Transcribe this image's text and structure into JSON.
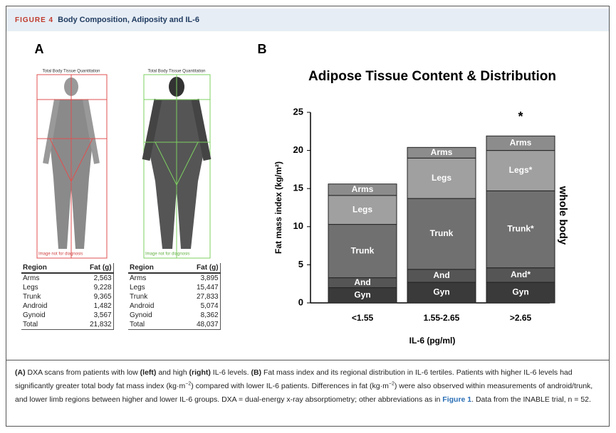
{
  "header": {
    "figure": "FIGURE 4",
    "title": "Body Composition, Adiposity and IL-6"
  },
  "panel_a": {
    "label": "A",
    "scans": [
      {
        "top_label": "Total Body Tissue Quantitation",
        "bottom_label": "Image not for diagnosis"
      },
      {
        "top_label": "Total Body Tissue Quantitation",
        "bottom_label": "Image not for diagnosis"
      }
    ],
    "tables": [
      {
        "header": [
          "Region",
          "Fat (g)"
        ],
        "rows": [
          [
            "Arms",
            "2,563"
          ],
          [
            "Legs",
            "9,228"
          ],
          [
            "Trunk",
            "9,365"
          ],
          [
            "Android",
            "1,482"
          ],
          [
            "Gynoid",
            "3,567"
          ],
          [
            "Total",
            "21,832"
          ]
        ]
      },
      {
        "header": [
          "Region",
          "Fat (g)"
        ],
        "rows": [
          [
            "Arms",
            "3,895"
          ],
          [
            "Legs",
            "15,447"
          ],
          [
            "Trunk",
            "27,833"
          ],
          [
            "Android",
            "5,074"
          ],
          [
            "Gynoid",
            "8,362"
          ],
          [
            "Total",
            "48,037"
          ]
        ]
      }
    ]
  },
  "panel_b": {
    "label": "B"
  },
  "chart_data": {
    "type": "stacked_bar",
    "title": "Adipose Tissue Content & Distribution",
    "y_label": "Fat mass index (kg/m²)",
    "x_label": "IL-6 (pg/ml)",
    "categories": [
      "<1.55",
      "1.55-2.65",
      ">2.65"
    ],
    "series": [
      {
        "color": "#3a3a3a",
        "values": [
          2.0,
          2.7,
          2.7
        ],
        "labels": [
          "Gyn",
          "Gyn",
          "Gyn"
        ]
      },
      {
        "color": "#555555",
        "values": [
          1.3,
          1.7,
          1.9
        ],
        "labels": [
          "And",
          "And",
          "And*"
        ]
      },
      {
        "color": "#707070",
        "values": [
          7.0,
          9.3,
          10.1
        ],
        "labels": [
          "Trunk",
          "Trunk",
          "Trunk*"
        ]
      },
      {
        "color": "#a0a0a0",
        "values": [
          3.8,
          5.3,
          5.3
        ],
        "labels": [
          "Legs",
          "Legs",
          "Legs*"
        ]
      },
      {
        "color": "#8c8c8c",
        "values": [
          1.5,
          1.4,
          1.9
        ],
        "labels": [
          "Arms",
          "Arms",
          "Arms"
        ]
      }
    ],
    "ylim": [
      0,
      25
    ],
    "yticks": [
      0,
      5,
      10,
      15,
      20,
      25
    ],
    "annotations": {
      "significance": "*",
      "bracket": "whole body"
    }
  },
  "caption": [
    "(A)",
    " DXA scans from patients with low ",
    "(left)",
    " and high ",
    "(right)",
    " IL-6 levels. ",
    "(B)",
    " Fat mass index and its regional distribution in IL-6 tertiles. Patients with higher IL-6 levels had significantly greater total body fat mass index (kg·m",
    "−2",
    ") compared with lower IL-6 patients. Differences in fat (kg·m",
    "−2",
    ") were also observed within measurements of android/trunk, and lower limb regions between higher and lower IL-6 groups. DXA = dual-energy x-ray absorptiometry; other abbreviations as in ",
    "Figure 1",
    ". Data from the INABLE trial, n = 52."
  ]
}
